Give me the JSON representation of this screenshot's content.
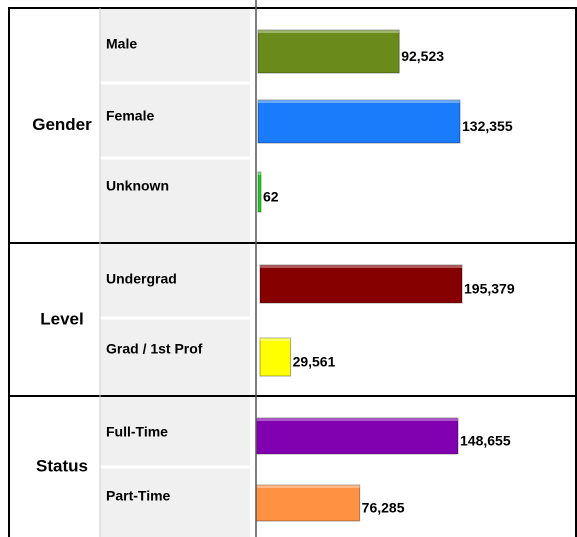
{
  "chart_data": {
    "type": "bar",
    "orientation": "horizontal",
    "groups": [
      {
        "name": "Gender",
        "categories": [
          "Male",
          "Female",
          "Unknown"
        ],
        "values": [
          92523,
          132355,
          62
        ],
        "value_labels": [
          "92,523",
          "132,355",
          "62"
        ],
        "colors": [
          "#6b8a1c",
          "#1a7cfa",
          "#1fd41f"
        ]
      },
      {
        "name": "Level",
        "categories": [
          "Undergrad",
          "Grad / 1st Prof"
        ],
        "values": [
          195379,
          29561
        ],
        "value_labels": [
          "195,379",
          "29,561"
        ],
        "colors": [
          "#860000",
          "#ffff00"
        ]
      },
      {
        "name": "Status",
        "categories": [
          "Full-Time",
          "Part-Time"
        ],
        "values": [
          148655,
          76285
        ],
        "value_labels": [
          "148,655",
          "76,285"
        ],
        "colors": [
          "#8100b0",
          "#ff9242"
        ]
      }
    ]
  }
}
